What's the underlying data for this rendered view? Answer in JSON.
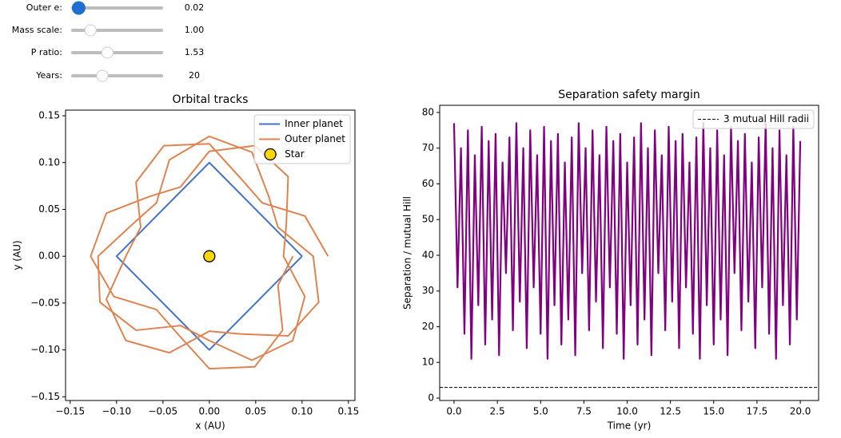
{
  "controls": [
    {
      "label": "Outer e:",
      "value": 0.02,
      "range": [
        0,
        0.3
      ]
    },
    {
      "label": "Mass scale:",
      "value": 1,
      "value_label": "1.00",
      "range": [
        0.5,
        3
      ]
    },
    {
      "label": "P ratio:",
      "value": 1.53,
      "range": [
        1.1,
        2.2
      ]
    },
    {
      "label": "Years:",
      "value": 20,
      "range": [
        5,
        50
      ]
    }
  ],
  "chart_data": [
    {
      "type": "line",
      "title": "Orbital tracks",
      "x_label": "x (AU)",
      "y_label": "y (AU)",
      "xlim": [
        -0.155,
        0.157
      ],
      "ylim": [
        -0.154,
        0.156
      ],
      "xticks": [
        {
          "value": -0.15,
          "label": "−0.15"
        },
        {
          "value": -0.1,
          "label": "−0.10"
        },
        {
          "value": -0.05,
          "label": "−0.05"
        },
        {
          "value": 0,
          "label": "0.00"
        },
        {
          "value": 0.05,
          "label": "0.05"
        },
        {
          "value": 0.1,
          "label": "0.10"
        },
        {
          "value": 0.15,
          "label": "0.15"
        }
      ],
      "yticks": [
        {
          "value": -0.15,
          "label": "−0.15"
        },
        {
          "value": -0.1,
          "label": "−0.10"
        },
        {
          "value": -0.05,
          "label": "−0.05"
        },
        {
          "value": 0,
          "label": "0.00"
        },
        {
          "value": 0.05,
          "label": "0.05"
        },
        {
          "value": 0.1,
          "label": "0.10"
        },
        {
          "value": 0.15,
          "label": "0.15"
        }
      ],
      "legend": "upper right",
      "series": [
        {
          "name": "Inner planet",
          "color": "#4472c4",
          "x": [
            0.1,
            0,
            -0.1,
            0,
            0.1
          ],
          "values": [
            0,
            0.1,
            0,
            -0.1,
            0
          ]
        },
        {
          "name": "Outer planet",
          "color": "#dd8452",
          "x": [
            0.128,
            0.103,
            0.057,
            0.034,
            0,
            -0.049,
            -0.079,
            -0.074,
            -0.09,
            -0.111,
            -0.09,
            -0.043,
            0,
            0.034,
            0.085,
            0.118,
            0.112,
            0.074,
            0.064,
            0.046,
            0,
            -0.043,
            -0.057,
            -0.083,
            -0.12,
            -0.118,
            -0.079,
            -0.031,
            0,
            0.046,
            0.09,
            0.103,
            0.08,
            0.083,
            0.085,
            0.049,
            0,
            -0.031,
            -0.064,
            -0.111,
            -0.128,
            -0.103,
            -0.057,
            -0.034,
            0,
            0.049,
            0.079,
            0.074,
            0.09
          ],
          "values": [
            0,
            0.043,
            0.057,
            0.083,
            0.12,
            0.118,
            0.079,
            0.031,
            0,
            -0.046,
            -0.09,
            -0.103,
            -0.08,
            -0.083,
            -0.085,
            -0.049,
            0,
            0.031,
            0.064,
            0.111,
            0.128,
            0.103,
            0.057,
            0.034,
            0,
            -0.049,
            -0.079,
            -0.074,
            -0.09,
            -0.111,
            -0.09,
            -0.043,
            0,
            0.034,
            0.085,
            0.118,
            0.112,
            0.074,
            0.064,
            0.046,
            0,
            -0.043,
            -0.057,
            -0.083,
            -0.12,
            -0.118,
            -0.079,
            -0.031,
            0
          ]
        },
        {
          "name": "Star",
          "type": "scatter",
          "color": "#ffd700",
          "x": [
            0
          ],
          "values": [
            0
          ]
        }
      ]
    },
    {
      "type": "line",
      "title": "Separation safety margin",
      "x_label": "Time (yr)",
      "y_label": "Separation / mutual Hill",
      "xlim": [
        -0.83,
        21.06
      ],
      "ylim": [
        -0.67,
        82.0
      ],
      "xticks": [
        {
          "value": 0,
          "label": "0.0"
        },
        2.5,
        {
          "value": 5,
          "label": "5.0"
        },
        7.5,
        {
          "value": 10,
          "label": "10.0"
        },
        12.5,
        {
          "value": 15,
          "label": "15.0"
        },
        17.5,
        {
          "value": 20,
          "label": "20.0"
        }
      ],
      "yticks": [
        0,
        10,
        20,
        30,
        40,
        50,
        60,
        70,
        80
      ],
      "legend": "upper right",
      "reference_line": {
        "name": "3 mutual Hill radii",
        "value": 3,
        "color": "#000000",
        "style": "dashed"
      },
      "x": [
        0,
        0.2,
        0.4,
        0.6,
        0.8,
        1,
        1.2,
        1.4,
        1.6,
        1.8,
        2,
        2.2,
        2.4,
        2.6,
        2.8,
        3,
        3.2,
        3.4,
        3.6,
        3.8,
        4,
        4.2,
        4.4,
        4.6,
        4.8,
        5,
        5.2,
        5.4,
        5.6,
        5.8,
        6,
        6.2,
        6.4,
        6.6,
        6.8,
        7,
        7.2,
        7.4,
        7.6,
        7.8,
        8,
        8.2,
        8.4,
        8.6,
        8.8,
        9,
        9.2,
        9.4,
        9.6,
        9.8,
        10,
        10.2,
        10.4,
        10.6,
        10.8,
        11,
        11.2,
        11.4,
        11.6,
        11.8,
        12,
        12.2,
        12.4,
        12.6,
        12.8,
        13,
        13.2,
        13.4,
        13.6,
        13.8,
        14,
        14.2,
        14.4,
        14.6,
        14.8,
        15,
        15.2,
        15.4,
        15.6,
        15.8,
        16,
        16.2,
        16.4,
        16.6,
        16.8,
        17,
        17.2,
        17.4,
        17.6,
        17.8,
        18,
        18.2,
        18.4,
        18.6,
        18.8,
        19,
        19.2,
        19.4,
        19.6,
        19.8,
        20
      ],
      "series": [
        {
          "color": "#800080",
          "values": [
            77,
            31,
            70,
            18,
            75,
            11,
            68,
            26,
            76,
            15,
            72,
            22,
            74,
            12,
            66,
            35,
            73,
            19,
            77,
            27,
            70,
            14,
            75,
            31,
            68,
            18,
            76,
            11,
            72,
            26,
            74,
            15,
            66,
            22,
            73,
            12,
            77,
            35,
            70,
            19,
            75,
            27,
            68,
            14,
            76,
            31,
            72,
            18,
            74,
            11,
            66,
            26,
            73,
            15,
            77,
            22,
            70,
            12,
            75,
            35,
            68,
            19,
            76,
            27,
            72,
            14,
            74,
            31,
            66,
            18,
            73,
            11,
            77,
            26,
            70,
            15,
            75,
            22,
            68,
            12,
            76,
            35,
            72,
            19,
            74,
            27,
            66,
            14,
            73,
            31,
            77,
            18,
            70,
            11,
            75,
            26,
            68,
            15,
            76,
            22,
            72
          ]
        }
      ]
    }
  ]
}
